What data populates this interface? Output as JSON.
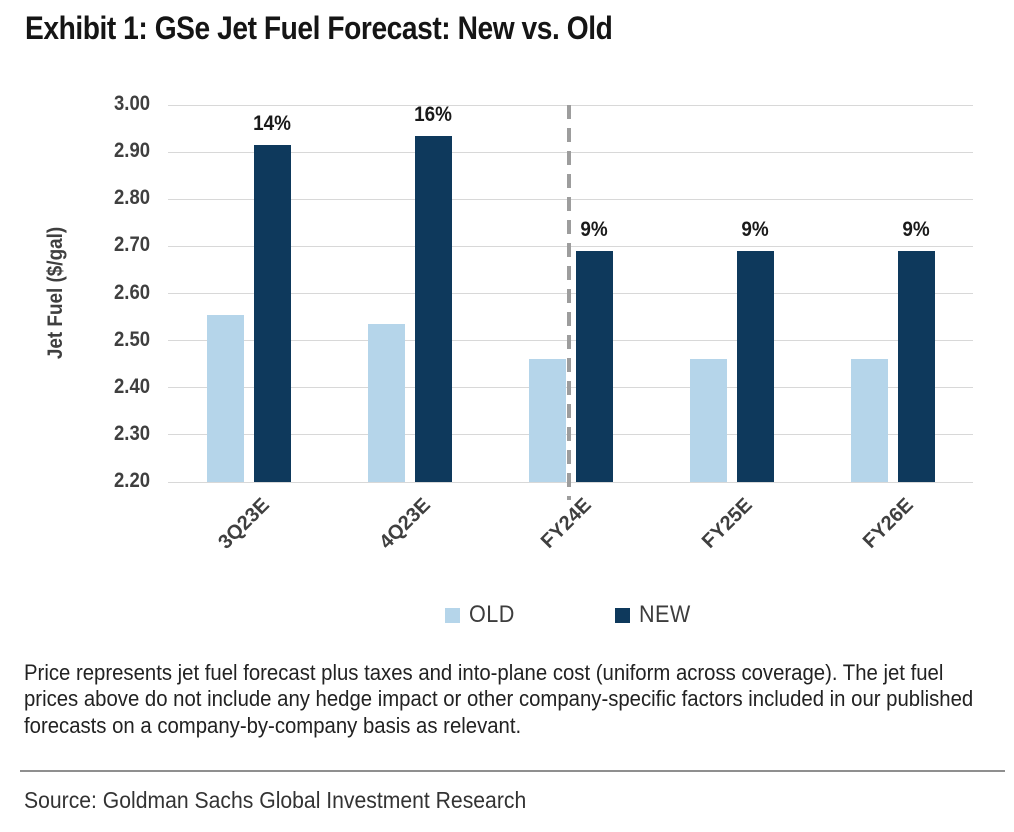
{
  "title": "Exhibit 1: GSe Jet Fuel Forecast: New vs. Old",
  "chart_data": {
    "type": "bar",
    "title": "Exhibit 1: GSe Jet Fuel Forecast: New vs. Old",
    "xlabel": "",
    "ylabel": "Jet Fuel ($/gal)",
    "categories": [
      "3Q23E",
      "4Q23E",
      "FY24E",
      "FY25E",
      "FY26E"
    ],
    "series": [
      {
        "name": "OLD",
        "color": "#b5d5ea",
        "values": [
          2.555,
          2.535,
          2.46,
          2.46,
          2.46
        ]
      },
      {
        "name": "NEW",
        "color": "#0e395c",
        "values": [
          2.915,
          2.935,
          2.69,
          2.69,
          2.69
        ]
      }
    ],
    "bar_labels": {
      "series": "NEW",
      "values": [
        "14%",
        "16%",
        "9%",
        "9%",
        "9%"
      ]
    },
    "ylim": [
      2.2,
      3.0
    ],
    "ytick_step": 0.1,
    "yticks": [
      "3.00",
      "2.90",
      "2.80",
      "2.70",
      "2.60",
      "2.50",
      "2.40",
      "2.30",
      "2.20"
    ],
    "grid": true,
    "gridline_color": "#d8d8d8",
    "legend_position": "bottom",
    "divider": {
      "style": "dashed",
      "color": "#9d9d9d",
      "category_index": 2,
      "position": "between-old-and-new-bars"
    }
  },
  "legend": {
    "items": [
      {
        "label": "OLD",
        "color": "#b5d5ea"
      },
      {
        "label": "NEW",
        "color": "#0e395c"
      }
    ]
  },
  "footnote": "Price represents jet fuel forecast plus taxes and into-plane cost (uniform across coverage). The jet fuel prices above do not include any hedge impact or other company-specific factors included in our published forecasts on a company-by-company basis as relevant.",
  "source": "Source: Goldman Sachs Global Investment Research"
}
